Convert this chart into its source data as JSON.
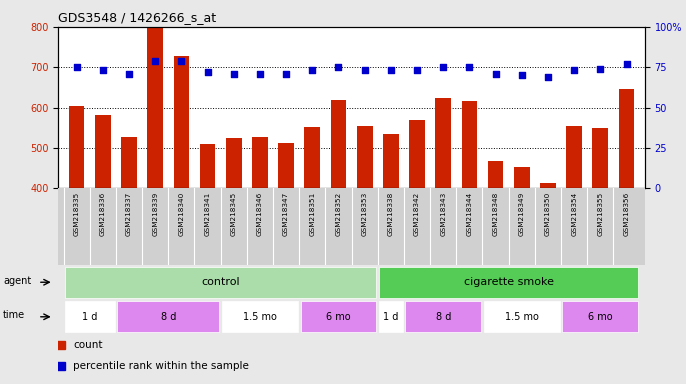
{
  "title": "GDS3548 / 1426266_s_at",
  "samples": [
    "GSM218335",
    "GSM218336",
    "GSM218337",
    "GSM218339",
    "GSM218340",
    "GSM218341",
    "GSM218345",
    "GSM218346",
    "GSM218347",
    "GSM218351",
    "GSM218352",
    "GSM218353",
    "GSM218338",
    "GSM218342",
    "GSM218343",
    "GSM218344",
    "GSM218348",
    "GSM218349",
    "GSM218350",
    "GSM218354",
    "GSM218355",
    "GSM218356"
  ],
  "counts": [
    605,
    582,
    526,
    797,
    728,
    510,
    524,
    526,
    512,
    552,
    619,
    553,
    535,
    568,
    624,
    617,
    468,
    452,
    413,
    553,
    548,
    645
  ],
  "percentiles": [
    75,
    73,
    71,
    79,
    79,
    72,
    71,
    71,
    71,
    73,
    75,
    73,
    73,
    73,
    75,
    75,
    71,
    70,
    69,
    73,
    74,
    77
  ],
  "ylim_left": [
    400,
    800
  ],
  "ylim_right": [
    0,
    100
  ],
  "yticks_left": [
    400,
    500,
    600,
    700,
    800
  ],
  "yticks_right": [
    0,
    25,
    50,
    75,
    100
  ],
  "bar_color": "#cc2200",
  "dot_color": "#0000cc",
  "bg_color": "#e8e8e8",
  "plot_bg": "#ffffff",
  "control_label": "control",
  "smoke_label": "cigarette smoke",
  "control_color": "#aaddaa",
  "smoke_color": "#55cc55",
  "time_white": "#ffffff",
  "time_purple": "#dd88ee",
  "time_labels_control": [
    "1 d",
    "8 d",
    "1.5 mo",
    "6 mo"
  ],
  "time_labels_smoke": [
    "1 d",
    "8 d",
    "1.5 mo",
    "6 mo"
  ],
  "time_spans_control": [
    2,
    4,
    3,
    3
  ],
  "time_spans_smoke": [
    1,
    3,
    3,
    3
  ],
  "legend_count_label": "count",
  "legend_pct_label": "percentile rank within the sample",
  "agent_label": "agent",
  "time_label": "time"
}
